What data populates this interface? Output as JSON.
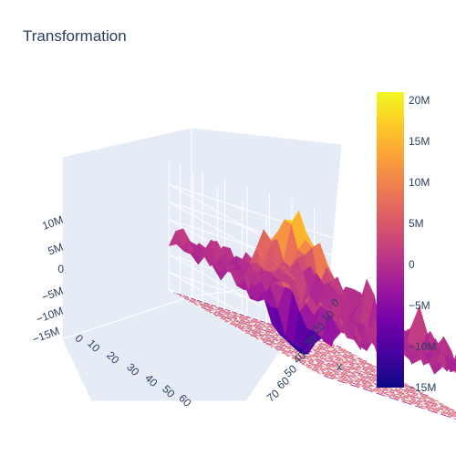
{
  "chart_data": {
    "type": "surface",
    "title": "Transformation",
    "x_axis": {
      "title": "x",
      "ticks": [
        "0",
        "10",
        "20",
        "30",
        "40",
        "50",
        "60",
        "70"
      ]
    },
    "y_axis": {
      "title": "",
      "ticks": [
        "0",
        "10",
        "20",
        "30",
        "40",
        "50",
        "60"
      ]
    },
    "z_axis": {
      "title": "",
      "ticks": [
        "−15M",
        "−10M",
        "−5M",
        "0",
        "5M",
        "10M"
      ]
    },
    "colorbar": {
      "ticks": [
        "20M",
        "15M",
        "10M",
        "5M",
        "0",
        "−5M",
        "−10M",
        "−15M"
      ],
      "range": [
        -15000000,
        21000000
      ],
      "colorscale": [
        "#0d0887",
        "#46039f",
        "#7201a8",
        "#9c179e",
        "#bd3786",
        "#d8576b",
        "#ed7953",
        "#fb9f3a",
        "#fdca26",
        "#f0f921"
      ]
    },
    "z_range": [
      -15000000,
      21000000
    ],
    "x_range": [
      0,
      75
    ],
    "y_range": [
      0,
      65
    ],
    "contour_projection": true
  }
}
